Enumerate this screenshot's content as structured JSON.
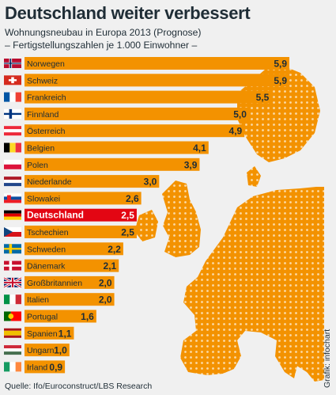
{
  "title": "Deutschland weiter verbessert",
  "subtitle_line1": "Wohnungsneubau in Europa 2013 (Prognose)",
  "subtitle_line2": "– Fertigstellungszahlen je 1.000 Einwohner –",
  "source": "Quelle: Ifo/Euroconstruct/LBS Research",
  "credit": "Grafik: infochart",
  "colors": {
    "bar": "#f39200",
    "highlight": "#e30613",
    "background": "#f0f0f0",
    "map_land": "#f39200",
    "text": "#1f2d36"
  },
  "chart_data": {
    "type": "bar",
    "orientation": "horizontal",
    "title": "Deutschland weiter verbessert",
    "subtitle": "Wohnungsneubau in Europa 2013 (Prognose) – Fertigstellungszahlen je 1.000 Einwohner –",
    "xlabel": "",
    "ylabel": "",
    "xlim": [
      0,
      5.9
    ],
    "grid": false,
    "highlight_category": "Deutschland",
    "categories": [
      "Norwegen",
      "Schweiz",
      "Frankreich",
      "Finnland",
      "Österreich",
      "Belgien",
      "Polen",
      "Niederlande",
      "Slowakei",
      "Deutschland",
      "Tschechien",
      "Schweden",
      "Dänemark",
      "Großbritannien",
      "Italien",
      "Portugal",
      "Spanien",
      "Ungarn",
      "Irland"
    ],
    "values": [
      5.9,
      5.9,
      5.5,
      5.0,
      4.9,
      4.1,
      3.9,
      3.0,
      2.6,
      2.5,
      2.5,
      2.2,
      2.1,
      2.0,
      2.0,
      1.6,
      1.1,
      1.0,
      0.9
    ],
    "value_labels": [
      "5,9",
      "5,9",
      "5,5",
      "5,0",
      "4,9",
      "4,1",
      "3,9",
      "3,0",
      "2,6",
      "2,5",
      "2,5",
      "2,2",
      "2,1",
      "2,0",
      "2,0",
      "1,6",
      "1,1",
      "1,0",
      "0,9"
    ],
    "flags": [
      "flag-norway-icon",
      "flag-switzerland-icon",
      "flag-france-icon",
      "flag-finland-icon",
      "flag-austria-icon",
      "flag-belgium-icon",
      "flag-poland-icon",
      "flag-netherlands-icon",
      "flag-slovakia-icon",
      "flag-germany-icon",
      "flag-czech-icon",
      "flag-sweden-icon",
      "flag-denmark-icon",
      "flag-uk-icon",
      "flag-italy-icon",
      "flag-portugal-icon",
      "flag-spain-icon",
      "flag-hungary-icon",
      "flag-ireland-icon"
    ]
  }
}
